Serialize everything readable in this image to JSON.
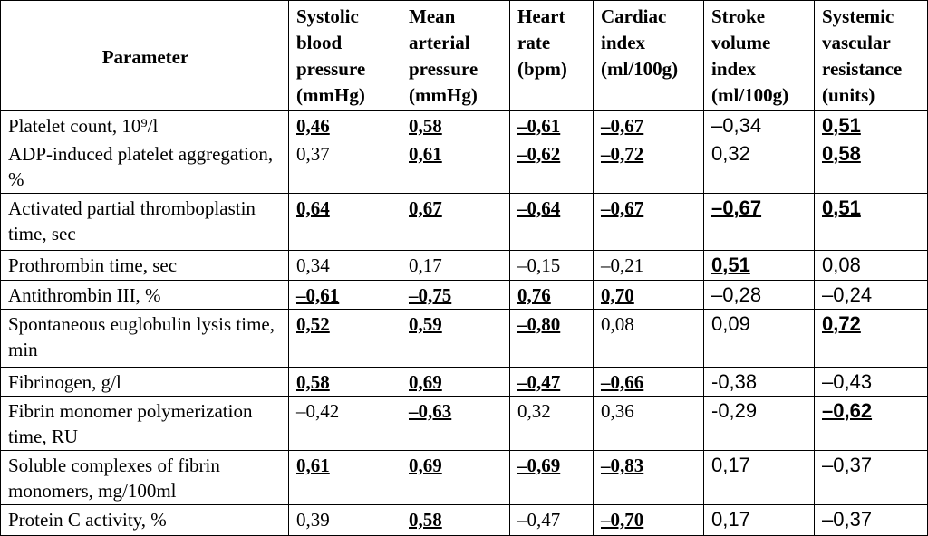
{
  "table": {
    "header": [
      {
        "name": "Parameter"
      },
      {
        "name": "Systolic blood pressure",
        "unit": "(mmHg)"
      },
      {
        "name": "Mean arterial pressure",
        "unit": "(mmHg)"
      },
      {
        "name": "Heart rate",
        "unit": "(bpm)"
      },
      {
        "name": "Cardiac index",
        "unit": "(ml/100g)"
      },
      {
        "name": "Stroke volume index",
        "unit": "(ml/100g)"
      },
      {
        "name": "Systemic vascular resistance",
        "unit": "(units)"
      }
    ],
    "rows": [
      [
        "Platelet count,  10⁹/l",
        {
          "text": "0,46",
          "emphasis": true
        },
        {
          "text": "0,58",
          "emphasis": true
        },
        {
          "text": "–0,61",
          "emphasis": true
        },
        {
          "text": "–0,67",
          "emphasis": true
        },
        {
          "text": "–0,34",
          "emphasis": false
        },
        {
          "text": "0,51",
          "emphasis": true
        }
      ],
      [
        "ADP-induced platelet aggregation, %",
        {
          "text": "0,37",
          "emphasis": false
        },
        {
          "text": "0,61",
          "emphasis": true
        },
        {
          "text": "–0,62",
          "emphasis": true
        },
        {
          "text": "–0,72",
          "emphasis": true
        },
        {
          "text": "0,32",
          "emphasis": false
        },
        {
          "text": "0,58",
          "emphasis": true
        }
      ],
      [
        "Activated partial thromboplastin time, sec",
        {
          "text": "0,64",
          "emphasis": true
        },
        {
          "text": "0,67",
          "emphasis": true
        },
        {
          "text": "–0,64",
          "emphasis": true
        },
        {
          "text": "–0,67",
          "emphasis": true
        },
        {
          "text": "–0,67",
          "emphasis": true
        },
        {
          "text": "0,51",
          "emphasis": true
        }
      ],
      [
        "Prothrombin  time, sec",
        {
          "text": "0,34",
          "emphasis": false
        },
        {
          "text": "0,17",
          "emphasis": false
        },
        {
          "text": "–0,15",
          "emphasis": false
        },
        {
          "text": "–0,21",
          "emphasis": false
        },
        {
          "text": "0,51",
          "emphasis": true
        },
        {
          "text": "0,08",
          "emphasis": false
        }
      ],
      [
        "Antithrombin  III, %",
        {
          "text": "–0,61",
          "emphasis": true
        },
        {
          "text": "–0,75",
          "emphasis": true
        },
        {
          "text": "0,76",
          "emphasis": true
        },
        {
          "text": "0,70",
          "emphasis": true
        },
        {
          "text": "–0,28",
          "emphasis": false
        },
        {
          "text": "–0,24",
          "emphasis": false
        }
      ],
      [
        "Spontaneous euglobulin lysis time, min",
        {
          "text": "0,52",
          "emphasis": true
        },
        {
          "text": "0,59",
          "emphasis": true
        },
        {
          "text": "–0,80",
          "emphasis": true
        },
        {
          "text": "0,08",
          "emphasis": false
        },
        {
          "text": "0,09",
          "emphasis": false
        },
        {
          "text": "0,72",
          "emphasis": true
        }
      ],
      [
        "Fibrinogen,  g/l",
        {
          "text": "0,58",
          "emphasis": true
        },
        {
          "text": "0,69",
          "emphasis": true
        },
        {
          "text": "–0,47",
          "emphasis": true
        },
        {
          "text": "–0,66",
          "emphasis": true
        },
        {
          "text": "-0,38",
          "emphasis": false
        },
        {
          "text": "–0,43",
          "emphasis": false
        }
      ],
      [
        "Fibrin monomer polymerization time, RU",
        {
          "text": "–0,42",
          "emphasis": false
        },
        {
          "text": "–0,63",
          "emphasis": true
        },
        {
          "text": "0,32",
          "emphasis": false
        },
        {
          "text": "0,36",
          "emphasis": false
        },
        {
          "text": "-0,29",
          "emphasis": false
        },
        {
          "text": "–0,62",
          "emphasis": true
        }
      ],
      [
        "Soluble complexes of fibrin monomers, mg/100ml",
        {
          "text": "0,61",
          "emphasis": true
        },
        {
          "text": "0,69",
          "emphasis": true
        },
        {
          "text": "–0,69",
          "emphasis": true
        },
        {
          "text": "–0,83",
          "emphasis": true
        },
        {
          "text": "0,17",
          "emphasis": false
        },
        {
          "text": "–0,37",
          "emphasis": false
        }
      ],
      [
        "Protein C   activity, %",
        {
          "text": "0,39",
          "emphasis": false
        },
        {
          "text": "0,58",
          "emphasis": true
        },
        {
          "text": "–0,47",
          "emphasis": false
        },
        {
          "text": "–0,70",
          "emphasis": true
        },
        {
          "text": "0,17",
          "emphasis": false
        },
        {
          "text": "–0,37",
          "emphasis": false
        }
      ]
    ]
  }
}
